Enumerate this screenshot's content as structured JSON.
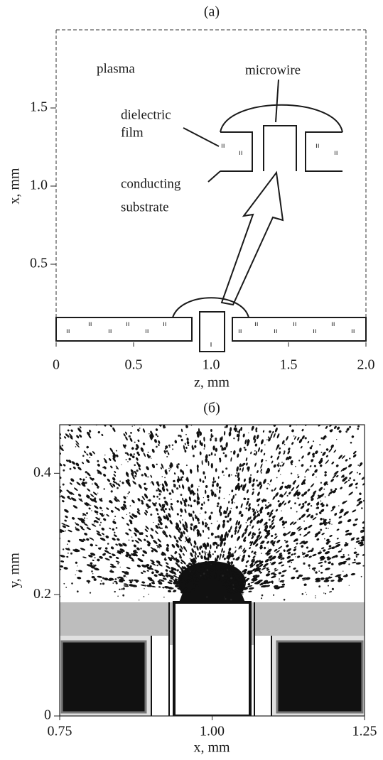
{
  "panels": [
    {
      "label": "(a)",
      "xlabel": "z, mm",
      "ylabel": "x, mm",
      "xlim": [
        0,
        2
      ],
      "ylim": [
        0,
        2
      ],
      "xticks": [
        0,
        0.5,
        {
          "value": 1,
          "label": "1.0"
        },
        1.5,
        {
          "value": 2,
          "label": "2.0"
        }
      ],
      "yticks": [
        0.5,
        {
          "value": 1,
          "label": "1.0"
        },
        1.5
      ],
      "annotations": [
        "plasma",
        "microwire",
        "dielectric",
        "film",
        "conducting",
        "substrate"
      ]
    },
    {
      "label": "(б)",
      "xlabel": "x, mm",
      "ylabel": "y, mm",
      "xlim": [
        0.75,
        1.25
      ],
      "ylim": [
        0,
        0.48
      ],
      "xticks": [
        0.75,
        {
          "value": 1,
          "label": "1.00"
        },
        1.25
      ],
      "yticks": [
        0,
        0.2,
        0.4
      ]
    }
  ]
}
